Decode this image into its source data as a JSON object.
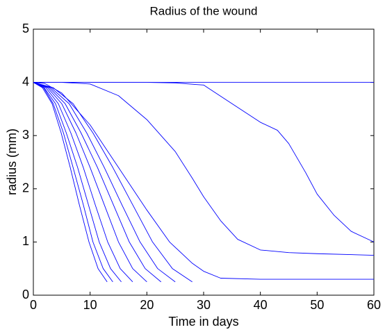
{
  "chart_data": {
    "type": "line",
    "title": "Radius of the wound",
    "x_label": "Time in days",
    "y_label": "radius (mm)",
    "xlim": [
      0,
      60
    ],
    "ylim": [
      0,
      5
    ],
    "xticks": [
      0,
      10,
      20,
      30,
      40,
      50,
      60
    ],
    "yticks": [
      0,
      1,
      2,
      3,
      4,
      5
    ],
    "grid": false,
    "series": [
      {
        "color": "#0000ff",
        "x": [
          0,
          60
        ],
        "values": [
          4,
          4
        ]
      },
      {
        "color": "#0000ff",
        "x": [
          0,
          20,
          25,
          30,
          35,
          40,
          43,
          45,
          48,
          50,
          53,
          56,
          60
        ],
        "values": [
          4,
          4,
          3.99,
          3.95,
          3.6,
          3.25,
          3.1,
          2.85,
          2.3,
          1.9,
          1.5,
          1.2,
          1.0
        ]
      },
      {
        "color": "#0000ff",
        "x": [
          0,
          5,
          10,
          15,
          20,
          25,
          28,
          30,
          33,
          36,
          40,
          45,
          50,
          60
        ],
        "values": [
          4,
          4,
          3.97,
          3.75,
          3.3,
          2.7,
          2.2,
          1.85,
          1.4,
          1.05,
          0.85,
          0.8,
          0.78,
          0.75
        ]
      },
      {
        "color": "#0000ff",
        "x": [
          0,
          2,
          5,
          10,
          15,
          20,
          24,
          28,
          30,
          33,
          40,
          60
        ],
        "values": [
          4,
          3.98,
          3.8,
          3.2,
          2.4,
          1.6,
          1.0,
          0.6,
          0.45,
          0.32,
          0.3,
          0.3
        ]
      },
      {
        "color": "#0000ff",
        "x": [
          0,
          3.5,
          7,
          10.5,
          14,
          17.5,
          21,
          24.5,
          28
        ],
        "values": [
          4,
          3.9,
          3.6,
          3.05,
          2.4,
          1.7,
          1.0,
          0.5,
          0.25
        ]
      },
      {
        "color": "#0000ff",
        "x": [
          0,
          3.1,
          6.3,
          9.4,
          12.5,
          15.6,
          18.8,
          21.9,
          25
        ],
        "values": [
          4,
          3.9,
          3.6,
          3.05,
          2.4,
          1.7,
          1.0,
          0.5,
          0.25
        ]
      },
      {
        "color": "#0000ff",
        "x": [
          0,
          2.8,
          5.6,
          8.4,
          11.3,
          14.1,
          16.9,
          19.7,
          22.5
        ],
        "values": [
          4,
          3.9,
          3.6,
          3.05,
          2.4,
          1.7,
          1.0,
          0.5,
          0.25
        ]
      },
      {
        "color": "#0000ff",
        "x": [
          0,
          2.5,
          5,
          7.5,
          10,
          12.5,
          15,
          17.5,
          20
        ],
        "values": [
          4,
          3.9,
          3.6,
          3.05,
          2.4,
          1.7,
          1.0,
          0.5,
          0.25
        ]
      },
      {
        "color": "#0000ff",
        "x": [
          0,
          2.2,
          4.4,
          6.6,
          8.8,
          10.9,
          13.1,
          15.3,
          17.5
        ],
        "values": [
          4,
          3.9,
          3.6,
          3.05,
          2.4,
          1.7,
          1.0,
          0.5,
          0.25
        ]
      },
      {
        "color": "#0000ff",
        "x": [
          0,
          1.9,
          3.9,
          5.8,
          7.8,
          9.7,
          11.6,
          13.6,
          15.5
        ],
        "values": [
          4,
          3.9,
          3.6,
          3.05,
          2.4,
          1.7,
          1.0,
          0.5,
          0.25
        ]
      },
      {
        "color": "#0000ff",
        "x": [
          0,
          1.8,
          3.5,
          5.3,
          7,
          8.8,
          10.5,
          12.3,
          14
        ],
        "values": [
          4,
          3.9,
          3.6,
          3.05,
          2.4,
          1.7,
          1.0,
          0.5,
          0.25
        ]
      },
      {
        "color": "#0000ff",
        "x": [
          0,
          1.6,
          3.3,
          4.9,
          6.5,
          8.1,
          9.8,
          11.4,
          13
        ],
        "values": [
          4,
          3.9,
          3.6,
          3.05,
          2.4,
          1.7,
          1.0,
          0.5,
          0.25
        ]
      }
    ]
  }
}
